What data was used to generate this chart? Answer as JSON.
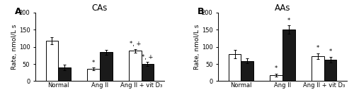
{
  "panel_A": {
    "title": "CAs",
    "label": "A",
    "groups": [
      "Normal",
      "Ang II",
      "Ang II + vit D₃"
    ],
    "open_bars": [
      118,
      35,
      88
    ],
    "solid_bars": [
      40,
      84,
      50
    ],
    "open_err": [
      10,
      4,
      6
    ],
    "solid_err": [
      8,
      8,
      6
    ],
    "annotations_open": [
      "",
      "*",
      "*, +"
    ],
    "annotations_solid": [
      "",
      "",
      "*, +"
    ],
    "ylim": [
      0,
      200
    ],
    "yticks": [
      0,
      50,
      100,
      150,
      200
    ],
    "ylabel": "Rate, nmol/L s"
  },
  "panel_B": {
    "title": "AAs",
    "label": "B",
    "groups": [
      "Normal",
      "Ang II",
      "Ang II + vit D₃"
    ],
    "open_bars": [
      78,
      18,
      73
    ],
    "solid_bars": [
      59,
      150,
      63
    ],
    "open_err": [
      12,
      4,
      8
    ],
    "solid_err": [
      7,
      12,
      8
    ],
    "annotations_open": [
      "",
      "*",
      "*"
    ],
    "annotations_solid": [
      "",
      "*",
      "*"
    ],
    "ylim": [
      0,
      200
    ],
    "yticks": [
      0,
      50,
      100,
      150,
      200
    ],
    "ylabel": "Rate, nmol/L s"
  },
  "bar_width": 0.3,
  "open_color": "#ffffff",
  "solid_color": "#1a1a1a",
  "edge_color": "#000000",
  "annotation_fontsize": 6.0,
  "axis_fontsize": 6.5,
  "title_fontsize": 8.5,
  "label_fontsize": 9,
  "tick_fontsize": 6.0
}
